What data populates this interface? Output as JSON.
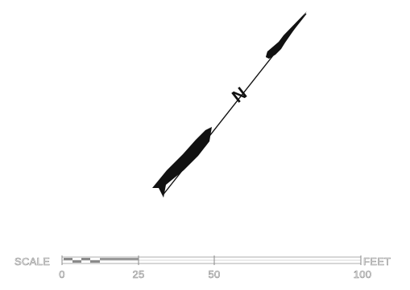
{
  "north_arrow": {
    "label": "N",
    "icon": "north-arrow-icon"
  },
  "scale_bar": {
    "title": "SCALE",
    "unit": "FEET",
    "ticks": [
      "0",
      "25",
      "50",
      "100"
    ]
  },
  "colors": {
    "arrow": "#111111",
    "scale": "#8a8a8a",
    "background": "#ffffff"
  }
}
